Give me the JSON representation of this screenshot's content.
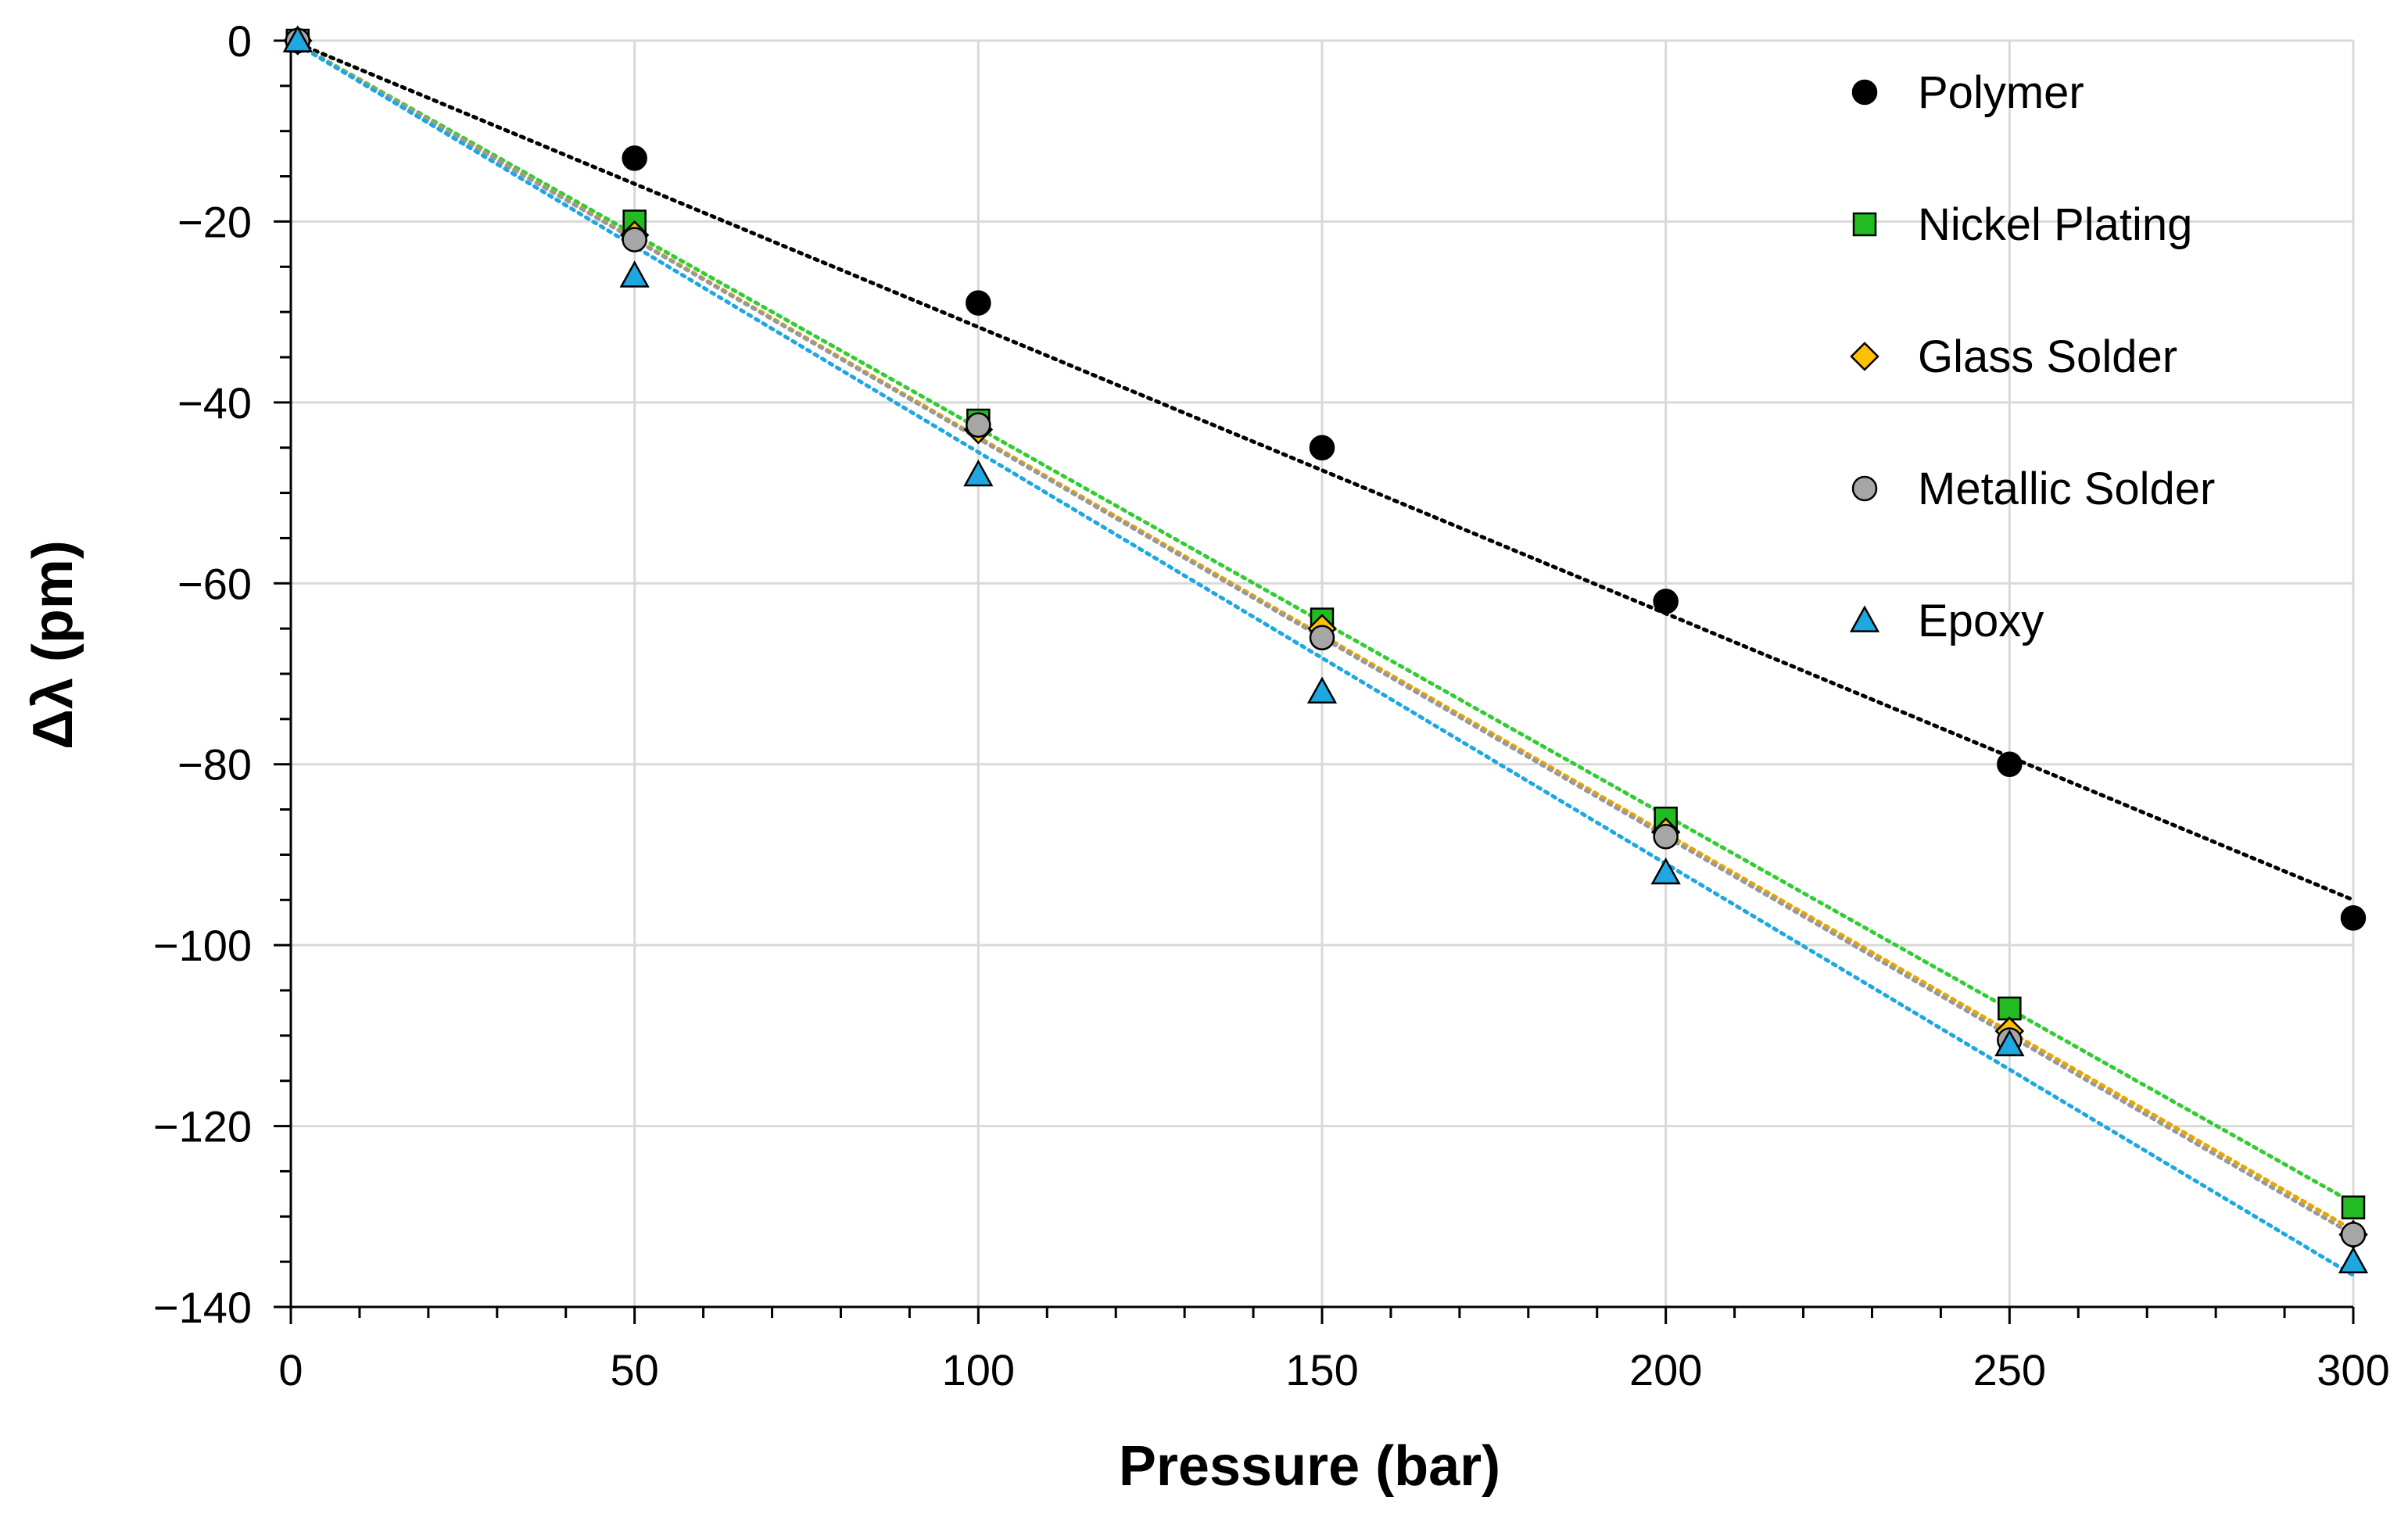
{
  "chart_data": {
    "type": "scatter",
    "xlabel": "Pressure (bar)",
    "ylabel": "Δλ (pm)",
    "xlim": [
      0,
      300
    ],
    "ylim": [
      -140,
      0
    ],
    "xticks": [
      0,
      50,
      100,
      150,
      200,
      250,
      300
    ],
    "yticks": [
      0,
      -20,
      -40,
      -60,
      -80,
      -100,
      -120,
      -140
    ],
    "x_minor_step": 10,
    "y_minor_step": 5,
    "grid": true,
    "legend_position": "top-right",
    "series": [
      {
        "name": "Polymer",
        "marker": "circle",
        "color": "#000000",
        "edge": "#000000",
        "line_color": "#000000",
        "x": [
          1,
          50,
          100,
          150,
          200,
          250,
          300
        ],
        "y": [
          0,
          -13,
          -29,
          -45,
          -62,
          -80,
          -97
        ],
        "trend": [
          [
            0,
            0
          ],
          [
            300,
            -95
          ]
        ]
      },
      {
        "name": "Nickel Plating",
        "marker": "square",
        "color": "#22bb22",
        "edge": "#000000",
        "line_color": "#33cc33",
        "x": [
          1,
          50,
          100,
          150,
          200,
          250,
          300
        ],
        "y": [
          0,
          -20,
          -42,
          -64,
          -86,
          -107,
          -129
        ],
        "trend": [
          [
            0,
            0
          ],
          [
            300,
            -128.5
          ]
        ]
      },
      {
        "name": "Glass Solder",
        "marker": "diamond",
        "color": "#ffc000",
        "edge": "#000000",
        "line_color": "#e8a600",
        "x": [
          1,
          50,
          100,
          150,
          200,
          250,
          300
        ],
        "y": [
          0,
          -21.5,
          -43,
          -65,
          -87.5,
          -109.5,
          -132
        ],
        "trend": [
          [
            0,
            0
          ],
          [
            300,
            -131.5
          ]
        ]
      },
      {
        "name": "Metallic Solder",
        "marker": "circle",
        "color": "#a6a6a6",
        "edge": "#000000",
        "line_color": "#999999",
        "x": [
          1,
          50,
          100,
          150,
          200,
          250,
          300
        ],
        "y": [
          0,
          -22,
          -42.5,
          -66,
          -88,
          -110.5,
          -132
        ],
        "trend": [
          [
            0,
            0
          ],
          [
            300,
            -132
          ]
        ]
      },
      {
        "name": "Epoxy",
        "marker": "triangle",
        "color": "#1ea7e1",
        "edge": "#000000",
        "line_color": "#1ea7e1",
        "x": [
          1,
          50,
          100,
          150,
          200,
          250,
          300
        ],
        "y": [
          0,
          -26,
          -48,
          -72,
          -92,
          -111,
          -135
        ],
        "trend": [
          [
            0,
            0
          ],
          [
            300,
            -136.5
          ]
        ]
      }
    ]
  }
}
